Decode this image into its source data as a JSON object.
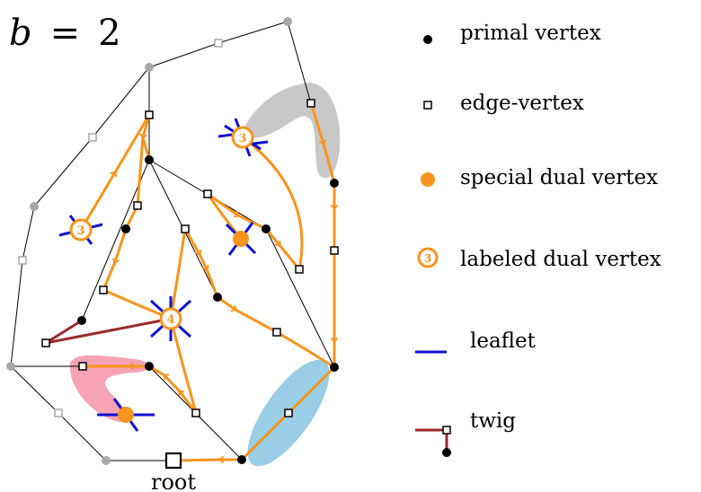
{
  "title": {
    "var": "b",
    "eq": "=",
    "value": "2"
  },
  "root_label": "root",
  "dual_labels": [
    "3",
    "3",
    "4"
  ],
  "legend": [
    {
      "id": "primal",
      "label": "primal vertex",
      "icon": "black-dot"
    },
    {
      "id": "edge",
      "label": "edge-vertex",
      "icon": "white-square"
    },
    {
      "id": "special",
      "label": "special dual vertex",
      "icon": "orange-dot"
    },
    {
      "id": "labeled",
      "label": "labeled dual vertex",
      "icon": "orange-ring-3",
      "icon_text": "3"
    },
    {
      "id": "leaflet",
      "label": "leaflet",
      "icon": "blue-segment"
    },
    {
      "id": "twig",
      "label": "twig",
      "icon": "red-segment"
    }
  ],
  "colors": {
    "orange": "#F7941D",
    "blue": "#1010D0",
    "twig": "#9B2A2A",
    "gray": "#A8A8A8",
    "pink": "#F5A3B5",
    "lightblue": "#9ACDE6",
    "lightgray": "#C8C8C8"
  }
}
